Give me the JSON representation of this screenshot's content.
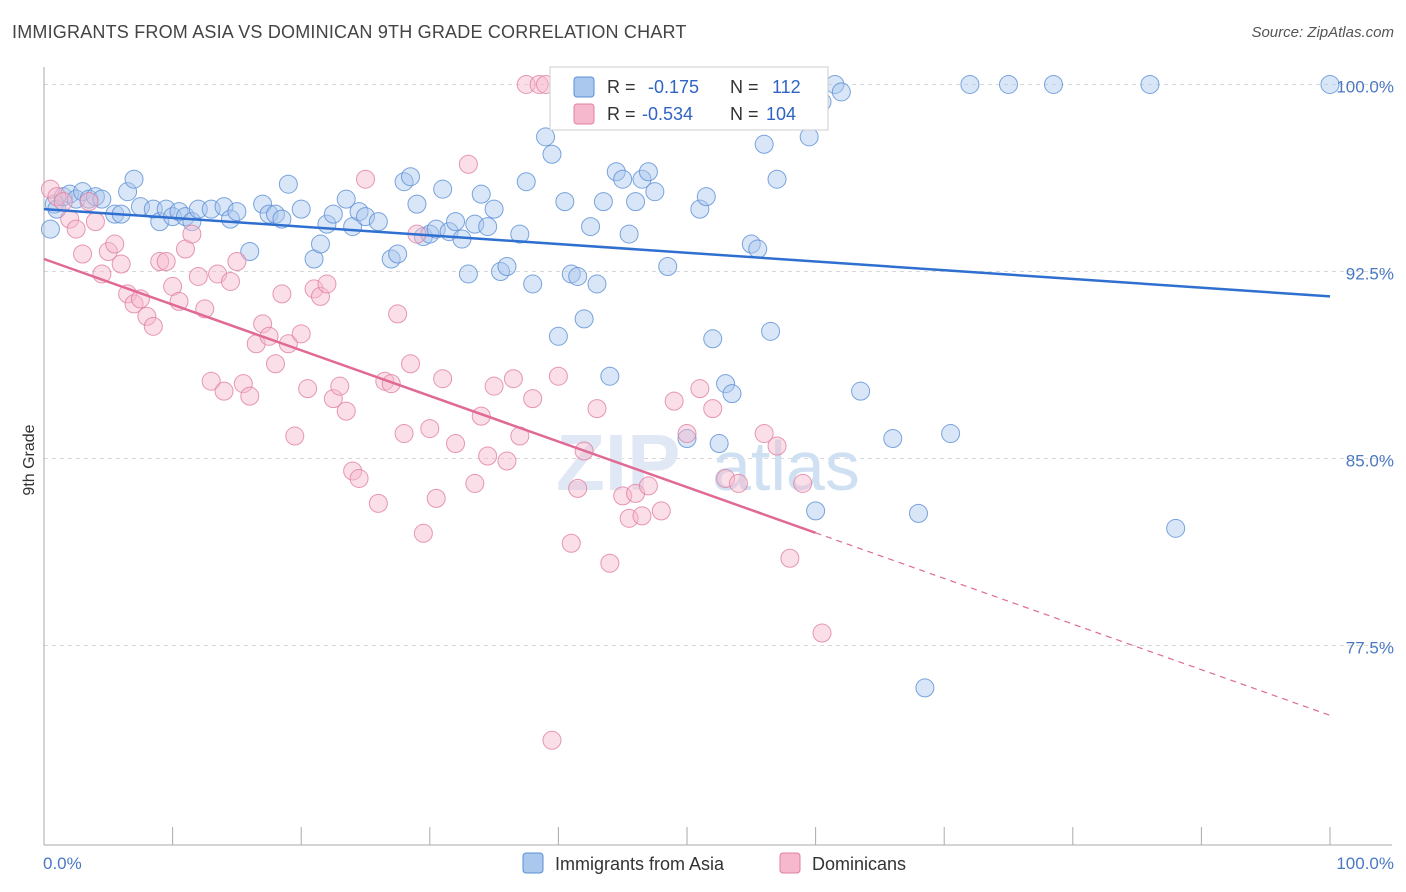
{
  "title": "IMMIGRANTS FROM ASIA VS DOMINICAN 9TH GRADE CORRELATION CHART",
  "source": "Source: ZipAtlas.com",
  "watermark": {
    "zip": "ZIP",
    "atlas": "atlas"
  },
  "colors": {
    "asia_fill": "#aac7ee",
    "asia_stroke": "#5b8fd6",
    "asia_line": "#2f6fd0",
    "dom_fill": "#f6b8cd",
    "dom_stroke": "#e07fa0",
    "dom_line": "#e06a95",
    "grid": "#d8d8d8",
    "tick_text": "#4a78c2"
  },
  "legend": {
    "rows": [
      {
        "r_label": "R =",
        "r_value": "-0.175",
        "n_label": "N =",
        "n_value": "112"
      },
      {
        "r_label": "R =",
        "r_value": "-0.534",
        "n_label": "N =",
        "n_value": "104"
      }
    ]
  },
  "bottom_legend": [
    "Immigrants from Asia",
    "Dominicans"
  ],
  "chart_data": {
    "type": "scatter",
    "title": "IMMIGRANTS FROM ASIA VS DOMINICAN 9TH GRADE CORRELATION CHART",
    "xlabel": "",
    "ylabel": "9th Grade",
    "xlim": [
      0,
      100
    ],
    "ylim": [
      69.5,
      100.7
    ],
    "x_tick_labels": [
      "0.0%",
      "100.0%"
    ],
    "y_ticks": [
      {
        "value": 100.0,
        "label": "100.0%"
      },
      {
        "value": 92.5,
        "label": "92.5%"
      },
      {
        "value": 85.0,
        "label": "85.0%"
      },
      {
        "value": 77.5,
        "label": "77.5%"
      }
    ],
    "grid": true,
    "legend_position": "top-center",
    "series": [
      {
        "name": "Immigrants from Asia",
        "trend": {
          "x": [
            0,
            100
          ],
          "y": [
            95.0,
            91.5
          ],
          "dashed_from": null
        },
        "points": [
          [
            0.5,
            94.2
          ],
          [
            0.8,
            95.2
          ],
          [
            1.0,
            95.0
          ],
          [
            1.5,
            95.5
          ],
          [
            2.0,
            95.6
          ],
          [
            2.5,
            95.4
          ],
          [
            3.0,
            95.7
          ],
          [
            3.5,
            95.4
          ],
          [
            4.0,
            95.5
          ],
          [
            4.5,
            95.4
          ],
          [
            5.5,
            94.8
          ],
          [
            6.0,
            94.8
          ],
          [
            6.5,
            95.7
          ],
          [
            7.0,
            96.2
          ],
          [
            7.5,
            95.1
          ],
          [
            8.5,
            95.0
          ],
          [
            9.0,
            94.5
          ],
          [
            9.5,
            95.0
          ],
          [
            10.0,
            94.7
          ],
          [
            10.5,
            94.9
          ],
          [
            11.0,
            94.7
          ],
          [
            11.5,
            94.5
          ],
          [
            12.0,
            95.0
          ],
          [
            13.0,
            95.0
          ],
          [
            14.0,
            95.1
          ],
          [
            14.5,
            94.6
          ],
          [
            15.0,
            94.9
          ],
          [
            16.0,
            93.3
          ],
          [
            17.0,
            95.2
          ],
          [
            17.5,
            94.8
          ],
          [
            18.0,
            94.8
          ],
          [
            18.5,
            94.6
          ],
          [
            19.0,
            96.0
          ],
          [
            20.0,
            95.0
          ],
          [
            21.0,
            93.0
          ],
          [
            21.5,
            93.6
          ],
          [
            22.0,
            94.4
          ],
          [
            22.5,
            94.8
          ],
          [
            23.5,
            95.4
          ],
          [
            24.0,
            94.3
          ],
          [
            24.5,
            94.9
          ],
          [
            25.0,
            94.7
          ],
          [
            26.0,
            94.5
          ],
          [
            27.0,
            93.0
          ],
          [
            27.5,
            93.2
          ],
          [
            28.0,
            96.1
          ],
          [
            28.5,
            96.3
          ],
          [
            29.0,
            95.2
          ],
          [
            29.5,
            93.9
          ],
          [
            30.0,
            94.0
          ],
          [
            30.5,
            94.2
          ],
          [
            31.0,
            95.8
          ],
          [
            31.5,
            94.1
          ],
          [
            32.0,
            94.5
          ],
          [
            32.5,
            93.8
          ],
          [
            33.0,
            92.4
          ],
          [
            33.5,
            94.4
          ],
          [
            34.0,
            95.6
          ],
          [
            34.5,
            94.3
          ],
          [
            35.0,
            95.0
          ],
          [
            35.5,
            92.5
          ],
          [
            36.0,
            92.7
          ],
          [
            37.0,
            94.0
          ],
          [
            37.5,
            96.1
          ],
          [
            38.0,
            92.0
          ],
          [
            39.0,
            97.9
          ],
          [
            39.5,
            97.2
          ],
          [
            40.0,
            89.9
          ],
          [
            40.5,
            95.3
          ],
          [
            41.0,
            92.4
          ],
          [
            41.5,
            92.3
          ],
          [
            42.0,
            90.6
          ],
          [
            42.5,
            94.3
          ],
          [
            43.0,
            92.0
          ],
          [
            43.5,
            95.3
          ],
          [
            44.0,
            88.3
          ],
          [
            44.5,
            96.5
          ],
          [
            45.0,
            96.2
          ],
          [
            45.5,
            94.0
          ],
          [
            46.0,
            95.3
          ],
          [
            46.5,
            96.2
          ],
          [
            47.0,
            96.5
          ],
          [
            47.5,
            95.7
          ],
          [
            48.5,
            92.7
          ],
          [
            50.0,
            85.8
          ],
          [
            51.0,
            95.0
          ],
          [
            51.5,
            95.5
          ],
          [
            52.0,
            89.8
          ],
          [
            52.5,
            85.6
          ],
          [
            53.0,
            88.0
          ],
          [
            53.5,
            87.6
          ],
          [
            54.0,
            98.9
          ],
          [
            55.0,
            93.6
          ],
          [
            55.5,
            93.4
          ],
          [
            56.0,
            97.6
          ],
          [
            56.5,
            90.1
          ],
          [
            57.0,
            96.2
          ],
          [
            58.0,
            100.0
          ],
          [
            59.5,
            97.9
          ],
          [
            60.0,
            82.9
          ],
          [
            60.5,
            99.3
          ],
          [
            61.5,
            100.0
          ],
          [
            62.0,
            99.7
          ],
          [
            63.5,
            87.7
          ],
          [
            66.0,
            85.8
          ],
          [
            68.0,
            82.8
          ],
          [
            68.5,
            75.8
          ],
          [
            70.5,
            86.0
          ],
          [
            72.0,
            100.0
          ],
          [
            75.0,
            100.0
          ],
          [
            78.5,
            100.0
          ],
          [
            86.0,
            100.0
          ],
          [
            88.0,
            82.2
          ],
          [
            100.0,
            100.0
          ]
        ]
      },
      {
        "name": "Dominicans",
        "trend": {
          "x": [
            0,
            100
          ],
          "y": [
            93.0,
            74.7
          ],
          "dashed_from": 60.0
        },
        "points": [
          [
            0.5,
            95.8
          ],
          [
            1.0,
            95.5
          ],
          [
            1.5,
            95.3
          ],
          [
            2.0,
            94.6
          ],
          [
            2.5,
            94.2
          ],
          [
            3.0,
            93.2
          ],
          [
            3.5,
            95.3
          ],
          [
            4.0,
            94.5
          ],
          [
            4.5,
            92.4
          ],
          [
            5.0,
            93.3
          ],
          [
            5.5,
            93.6
          ],
          [
            6.0,
            92.8
          ],
          [
            6.5,
            91.6
          ],
          [
            7.0,
            91.2
          ],
          [
            7.5,
            91.4
          ],
          [
            8.0,
            90.7
          ],
          [
            8.5,
            90.3
          ],
          [
            9.0,
            92.9
          ],
          [
            9.5,
            92.9
          ],
          [
            10.0,
            91.9
          ],
          [
            10.5,
            91.3
          ],
          [
            11.0,
            93.4
          ],
          [
            11.5,
            94.0
          ],
          [
            12.0,
            92.3
          ],
          [
            12.5,
            91.0
          ],
          [
            13.0,
            88.1
          ],
          [
            13.5,
            92.4
          ],
          [
            14.0,
            87.7
          ],
          [
            14.5,
            92.1
          ],
          [
            15.0,
            92.9
          ],
          [
            15.5,
            88.0
          ],
          [
            16.0,
            87.5
          ],
          [
            16.5,
            89.6
          ],
          [
            17.0,
            90.4
          ],
          [
            17.5,
            89.9
          ],
          [
            18.0,
            88.8
          ],
          [
            18.5,
            91.6
          ],
          [
            19.0,
            89.6
          ],
          [
            19.5,
            85.9
          ],
          [
            20.0,
            90.0
          ],
          [
            20.5,
            87.8
          ],
          [
            21.0,
            91.8
          ],
          [
            21.5,
            91.5
          ],
          [
            22.0,
            92.0
          ],
          [
            22.5,
            87.4
          ],
          [
            23.0,
            87.9
          ],
          [
            23.5,
            86.9
          ],
          [
            24.0,
            84.5
          ],
          [
            24.5,
            84.2
          ],
          [
            25.0,
            96.2
          ],
          [
            26.0,
            83.2
          ],
          [
            26.5,
            88.1
          ],
          [
            27.0,
            88.0
          ],
          [
            27.5,
            90.8
          ],
          [
            28.0,
            86.0
          ],
          [
            28.5,
            88.8
          ],
          [
            29.0,
            94.0
          ],
          [
            29.5,
            82.0
          ],
          [
            30.0,
            86.2
          ],
          [
            30.5,
            83.4
          ],
          [
            31.0,
            88.2
          ],
          [
            32.0,
            85.6
          ],
          [
            33.0,
            96.8
          ],
          [
            33.5,
            84.0
          ],
          [
            34.0,
            86.7
          ],
          [
            34.5,
            85.1
          ],
          [
            35.0,
            87.9
          ],
          [
            36.0,
            84.9
          ],
          [
            36.5,
            88.2
          ],
          [
            37.0,
            85.9
          ],
          [
            37.5,
            100.0
          ],
          [
            38.0,
            87.4
          ],
          [
            38.5,
            100.0
          ],
          [
            39.0,
            100.0
          ],
          [
            39.5,
            73.7
          ],
          [
            40.0,
            88.3
          ],
          [
            40.5,
            100.0
          ],
          [
            41.0,
            81.6
          ],
          [
            41.5,
            83.8
          ],
          [
            42.0,
            85.3
          ],
          [
            43.0,
            87.0
          ],
          [
            44.0,
            80.8
          ],
          [
            45.0,
            83.5
          ],
          [
            45.5,
            82.6
          ],
          [
            46.0,
            83.6
          ],
          [
            46.5,
            82.7
          ],
          [
            47.0,
            83.9
          ],
          [
            48.0,
            82.9
          ],
          [
            49.0,
            87.3
          ],
          [
            50.0,
            86.0
          ],
          [
            51.0,
            87.8
          ],
          [
            52.0,
            87.0
          ],
          [
            53.0,
            84.2
          ],
          [
            54.0,
            84.0
          ],
          [
            56.0,
            86.0
          ],
          [
            57.0,
            85.5
          ],
          [
            58.0,
            81.0
          ],
          [
            59.0,
            84.0
          ],
          [
            60.5,
            78.0
          ]
        ]
      }
    ]
  }
}
